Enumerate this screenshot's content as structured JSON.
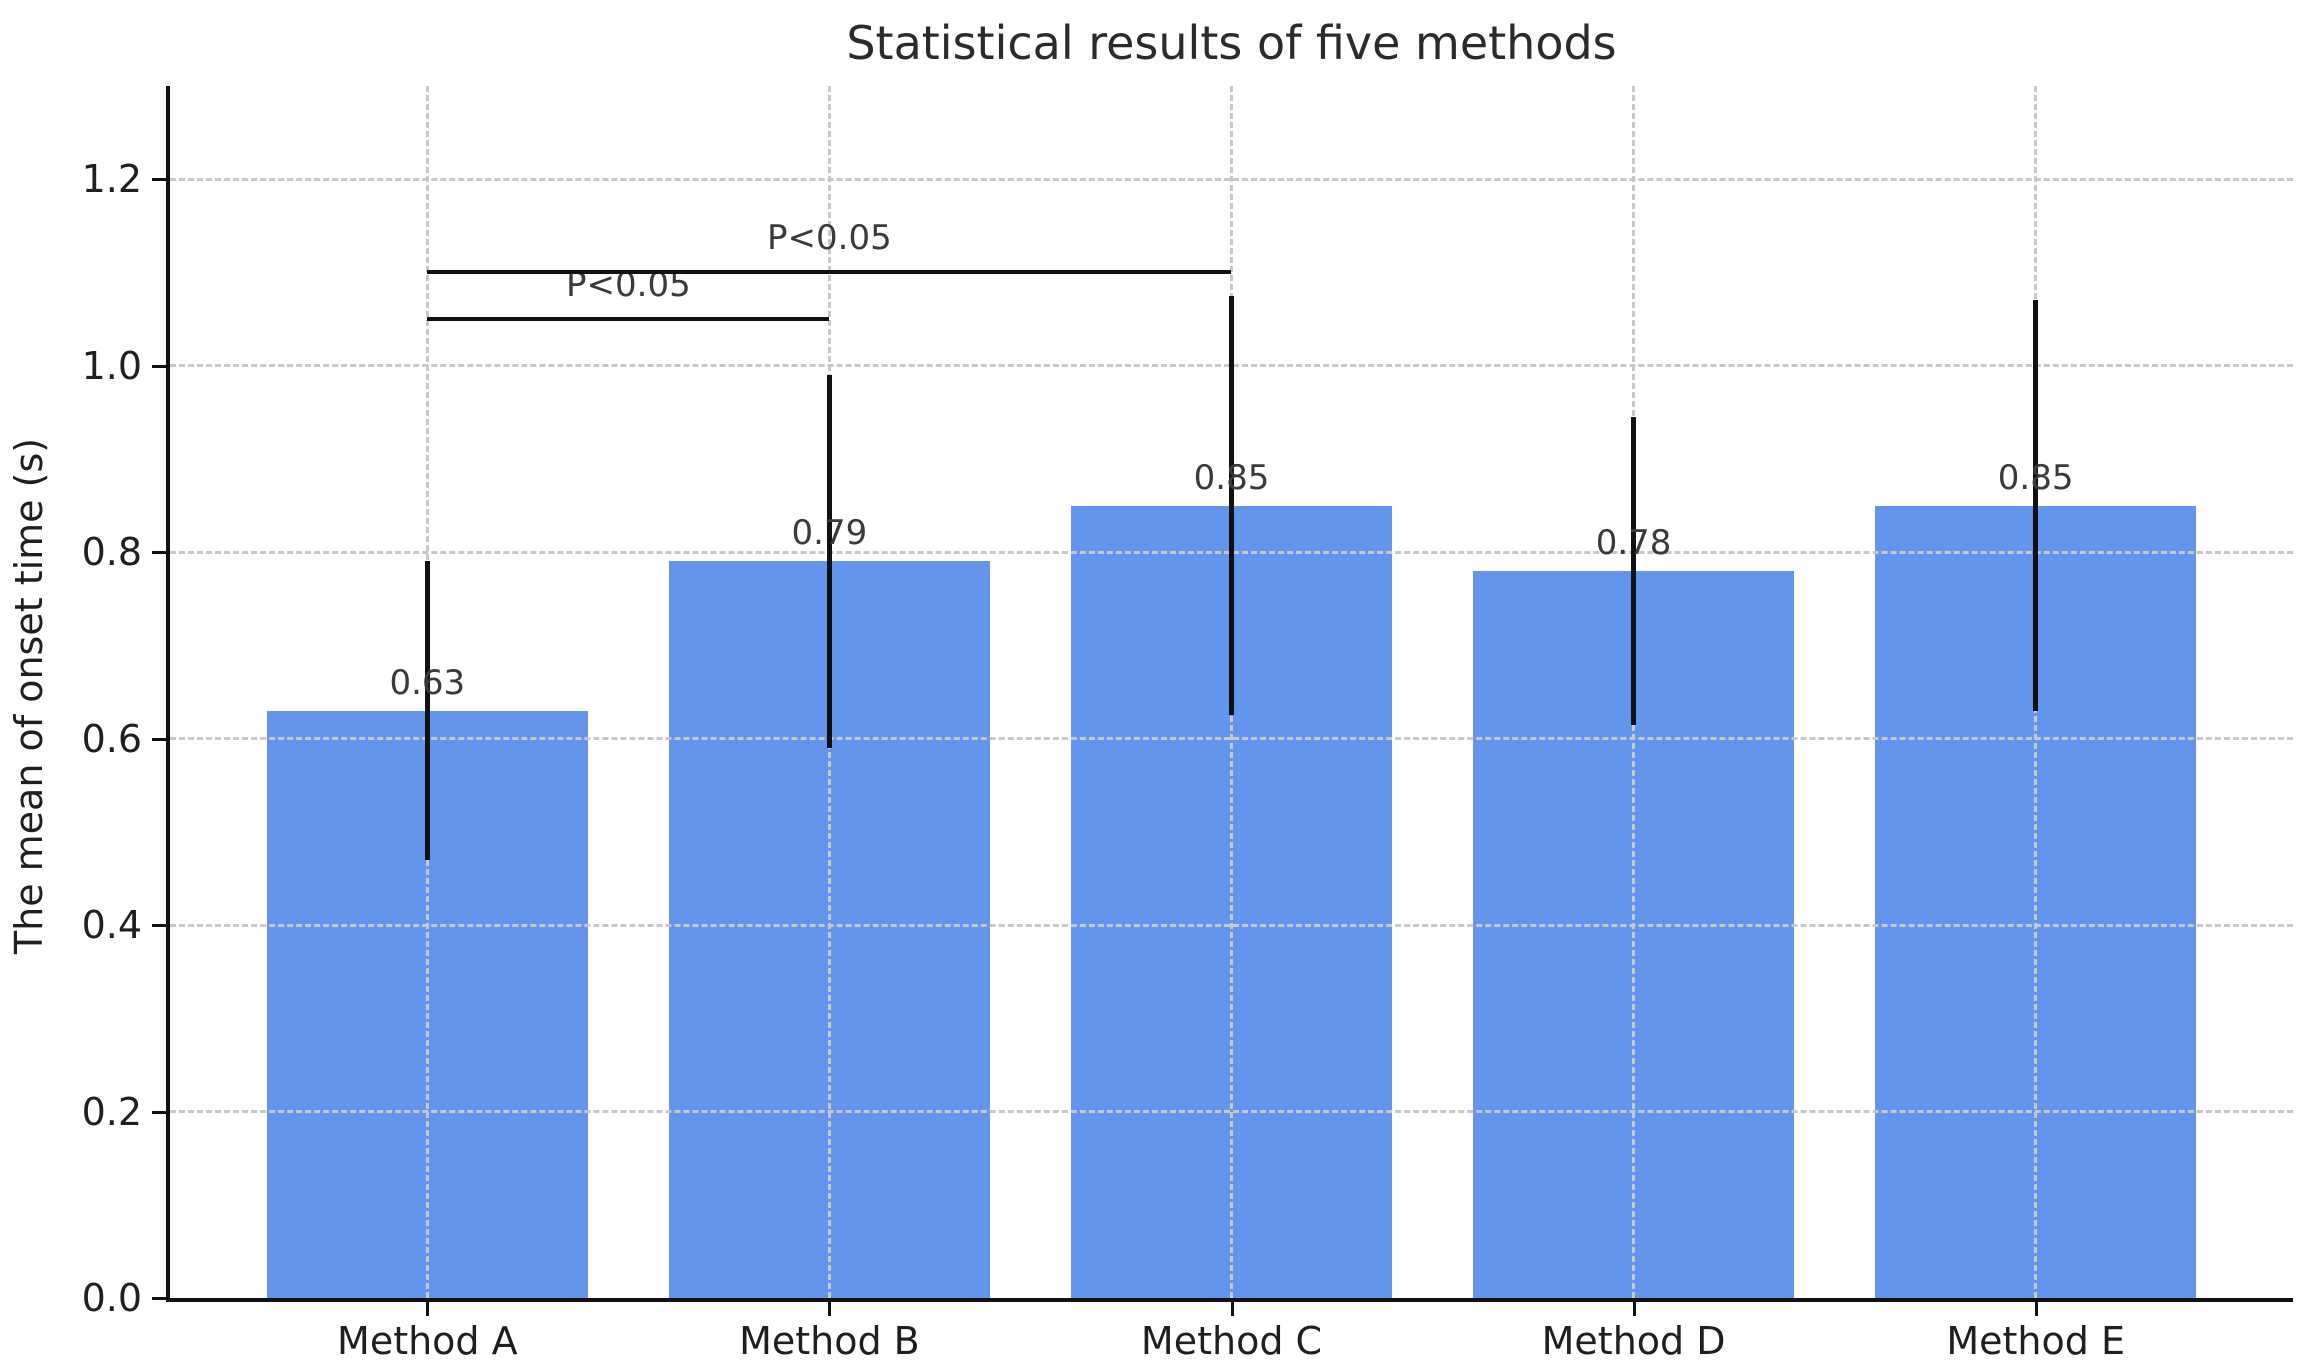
{
  "chart_data": {
    "type": "bar",
    "title": "Statistical results of five methods",
    "xlabel": "",
    "ylabel": "The mean of onset time (s)",
    "categories": [
      "Method A",
      "Method B",
      "Method C",
      "Method D",
      "Method E"
    ],
    "values": [
      0.63,
      0.79,
      0.85,
      0.78,
      0.85
    ],
    "bar_labels": [
      "0.63",
      "0.79",
      "0.85",
      "0.78",
      "0.85"
    ],
    "errors": [
      0.16,
      0.2,
      0.225,
      0.165,
      0.22
    ],
    "error_ranges": [
      [
        0.47,
        0.79
      ],
      [
        0.59,
        0.99
      ],
      [
        0.62,
        1.07
      ],
      [
        0.62,
        0.95
      ],
      [
        0.63,
        1.07
      ]
    ],
    "yticks": [
      "0.0",
      "0.2",
      "0.4",
      "0.6",
      "0.8",
      "1.0",
      "1.2"
    ],
    "ytick_values": [
      0.0,
      0.2,
      0.4,
      0.6,
      0.8,
      1.0,
      1.2
    ],
    "ylim": [
      0,
      1.3
    ],
    "grid": "dashed-both-axes-over-bars",
    "legend": "none",
    "bar_color": "#6495ED",
    "line_color": "#111111",
    "grid_color": "#c8c8c8",
    "significance_brackets": [
      {
        "from_index": 0,
        "to_index": 1,
        "height": 1.05,
        "label": "P<0.05"
      },
      {
        "from_index": 0,
        "to_index": 2,
        "height": 1.1,
        "label": "P<0.05"
      }
    ]
  }
}
